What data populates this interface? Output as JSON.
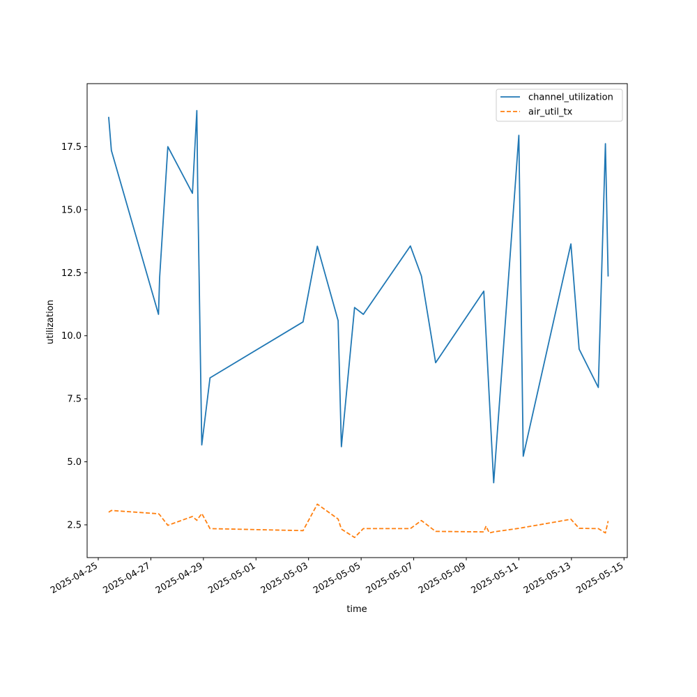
{
  "chart_data": {
    "type": "line",
    "title": "",
    "xlabel": "time",
    "ylabel": "utilization",
    "xlim": [
      "2025-04-24T13:50:00",
      "2025-05-15T03:00:00"
    ],
    "ylim": [
      1.2,
      20.0
    ],
    "x_ticks": [
      "2025-04-25",
      "2025-04-27",
      "2025-04-29",
      "2025-05-01",
      "2025-05-03",
      "2025-05-05",
      "2025-05-07",
      "2025-05-09",
      "2025-05-11",
      "2025-05-13",
      "2025-05-15"
    ],
    "y_ticks": [
      2.5,
      5.0,
      7.5,
      10.0,
      12.5,
      15.0,
      17.5
    ],
    "y_tick_labels": [
      "2.5",
      "5.0",
      "7.5",
      "10.0",
      "12.5",
      "15.0",
      "17.5"
    ],
    "grid": false,
    "legend_position": "top-right",
    "series": [
      {
        "name": "channel_utilization",
        "color": "#1f77b4",
        "dash": "solid",
        "points": [
          [
            "2025-04-25T09:30:00",
            18.68
          ],
          [
            "2025-04-25T12:00:00",
            17.35
          ],
          [
            "2025-04-27T07:00:00",
            10.85
          ],
          [
            "2025-04-27T08:00:00",
            12.3
          ],
          [
            "2025-04-27T15:30:00",
            17.5
          ],
          [
            "2025-04-28T14:00:00",
            15.65
          ],
          [
            "2025-04-28T18:00:00",
            18.93
          ],
          [
            "2025-04-28T18:45:00",
            16.0
          ],
          [
            "2025-04-28T22:30:00",
            5.67
          ],
          [
            "2025-04-29T06:00:00",
            8.33
          ],
          [
            "2025-05-02T19:00:00",
            10.55
          ],
          [
            "2025-05-03T08:00:00",
            13.55
          ],
          [
            "2025-05-04T03:00:00",
            10.6
          ],
          [
            "2025-05-04T06:00:00",
            5.6
          ],
          [
            "2025-05-04T18:00:00",
            11.12
          ],
          [
            "2025-05-05T02:00:00",
            10.85
          ],
          [
            "2025-05-06T21:00:00",
            13.56
          ],
          [
            "2025-05-07T07:00:00",
            12.37
          ],
          [
            "2025-05-07T20:00:00",
            8.93
          ],
          [
            "2025-05-09T16:00:00",
            11.77
          ],
          [
            "2025-05-10T01:00:00",
            4.17
          ],
          [
            "2025-05-11T00:00:00",
            17.95
          ],
          [
            "2025-05-11T04:00:00",
            5.22
          ],
          [
            "2025-05-12T23:30:00",
            13.64
          ],
          [
            "2025-05-13T07:00:00",
            9.47
          ],
          [
            "2025-05-14T00:30:00",
            7.95
          ],
          [
            "2025-05-14T07:00:00",
            17.62
          ],
          [
            "2025-05-14T09:30:00",
            12.35
          ]
        ]
      },
      {
        "name": "air_util_tx",
        "color": "#ff7f0e",
        "dash": "dashed",
        "points": [
          [
            "2025-04-25T09:30:00",
            3.0
          ],
          [
            "2025-04-25T12:00:00",
            3.07
          ],
          [
            "2025-04-27T07:00:00",
            2.94
          ],
          [
            "2025-04-27T08:00:00",
            2.9
          ],
          [
            "2025-04-27T15:30:00",
            2.48
          ],
          [
            "2025-04-28T14:00:00",
            2.83
          ],
          [
            "2025-04-28T18:00:00",
            2.68
          ],
          [
            "2025-04-28T22:30:00",
            2.95
          ],
          [
            "2025-04-29T06:00:00",
            2.35
          ],
          [
            "2025-05-02T19:00:00",
            2.27
          ],
          [
            "2025-05-03T08:00:00",
            3.32
          ],
          [
            "2025-05-04T03:00:00",
            2.73
          ],
          [
            "2025-05-04T06:00:00",
            2.33
          ],
          [
            "2025-05-04T18:00:00",
            2.0
          ],
          [
            "2025-05-05T02:00:00",
            2.35
          ],
          [
            "2025-05-06T21:00:00",
            2.35
          ],
          [
            "2025-05-07T07:00:00",
            2.67
          ],
          [
            "2025-05-07T20:00:00",
            2.24
          ],
          [
            "2025-05-09T16:00:00",
            2.22
          ],
          [
            "2025-05-09T18:00:00",
            2.45
          ],
          [
            "2025-05-09T21:00:00",
            2.18
          ],
          [
            "2025-05-10T01:00:00",
            2.22
          ],
          [
            "2025-05-11T00:00:00",
            2.36
          ],
          [
            "2025-05-12T23:30:00",
            2.72
          ],
          [
            "2025-05-13T07:00:00",
            2.36
          ],
          [
            "2025-05-14T00:30:00",
            2.35
          ],
          [
            "2025-05-14T07:00:00",
            2.18
          ],
          [
            "2025-05-14T09:30:00",
            2.65
          ]
        ]
      }
    ]
  }
}
